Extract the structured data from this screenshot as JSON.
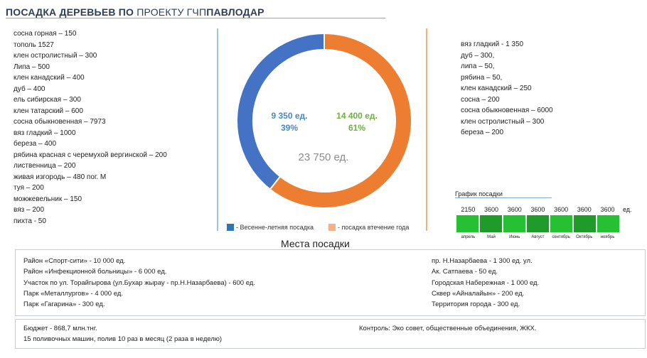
{
  "header": {
    "title_bold_1": "ПОСАДКА ДЕРЕВЬЕВ ПО",
    "title_thin": "ПРОЕКТУ ГЧП",
    "title_bold_2": "ПАВЛОДАР"
  },
  "left_list": [
    "сосна горная – 150",
    "тополь 1527",
    "клен остролистный – 300",
    "Липа – 500",
    "клен канадский – 400",
    "дуб – 400",
    "ель сибирская – 300",
    "клен татарский – 600",
    "сосна обыкновенная – 7973",
    "вяз гладкий – 1000",
    "береза – 400",
    "рябина красная с черемухой вергинской – 200",
    "лиственница – 200",
    "живая изгородь – 480 пог. М",
    "туя – 200",
    "можжевельник – 150",
    "вяз – 200",
    "пихта - 50"
  ],
  "right_list": [
    "вяз гладкий - 1 350",
    "дуб – 300,",
    "липа – 50,",
    "рябина – 50,",
    "клен канадский – 250",
    "сосна – 200",
    "сосна обыкновенная – 6000",
    "клен остролистный – 300",
    "береза – 200"
  ],
  "colors": {
    "spring": "#4472c4",
    "autumn": "#ed7d31",
    "spring_text": "#4a86c6",
    "autumn_text": "#70ad47",
    "total_text": "#8c8c8c",
    "left_divider": "#9dc3e6",
    "right_divider": "#f4b183",
    "schedule_green": "#26c033"
  },
  "chart_data": [
    {
      "type": "pie",
      "style": "donut",
      "total_label": "23 750 ед.",
      "slices": [
        {
          "name": "- Весенне-летняя посадка",
          "value": 9350,
          "value_label": "9 350 ед.",
          "percent_label": "39%",
          "color": "#4472c4"
        },
        {
          "name": "- посадка втечение года",
          "value": 14400,
          "value_label": "14 400 ед.",
          "percent_label": "61%",
          "color": "#ed7d31"
        }
      ],
      "legend_placement": "bottom"
    },
    {
      "type": "table",
      "title": "График посадки",
      "unit": "ед.",
      "months": [
        "апрель",
        "Май",
        "Июнь",
        "Август",
        "сентябрь",
        "Октябрь",
        "ноябрь"
      ],
      "values": [
        2150,
        3600,
        3600,
        3600,
        3600,
        3600,
        3600
      ],
      "value_labels": [
        "2150",
        "3600",
        "3600",
        "3600",
        "3600",
        "3600",
        "3600"
      ]
    }
  ],
  "places": {
    "title": "Места посадки",
    "left": [
      "Район «Спорт-сити» - 10 000 ед.",
      "Район «Инфекционной больницы» - 6 000 ед.",
      "Участок по ул. Торайгырова (ул.Бухар жырау - пр.Н.Назарбаева) - 600 ед.",
      "Парк «Металлургов» - 4 000 ед.",
      "Парк «Гагарина» - 300 ед."
    ],
    "right": [
      "пр. Н.Назарбаева - 1 300 ед. ул.",
      "Ак. Сатпаева - 50 ед.",
      "Городская Набережная - 1 000 ед.",
      "Сквер «Айналайын» - 200 ед.",
      "Территория города - 300 ед."
    ]
  },
  "footer": {
    "budget": "Бюджет - 868,7 млн.тнг.",
    "machines": "15 поливочных машин, полив 10 раз в месяц (2 раза в неделю)",
    "control": "Контроль: Эко совет, общественные объединения, ЖКХ."
  }
}
